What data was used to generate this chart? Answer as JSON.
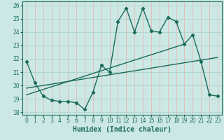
{
  "xlabel": "Humidex (Indice chaleur)",
  "xlim": [
    -0.5,
    23.5
  ],
  "ylim": [
    17.8,
    26.3
  ],
  "yticks": [
    18,
    19,
    20,
    21,
    22,
    23,
    24,
    25,
    26
  ],
  "xticks": [
    0,
    1,
    2,
    3,
    4,
    5,
    6,
    7,
    8,
    9,
    10,
    11,
    12,
    13,
    14,
    15,
    16,
    17,
    18,
    19,
    20,
    21,
    22,
    23
  ],
  "bg_color": "#cce8e4",
  "line_color": "#1a6b5a",
  "vgrid_color": "#e8b8b8",
  "hgrid_color": "#aad4cc",
  "line1_x": [
    0,
    1,
    2,
    3,
    4,
    5,
    6,
    7,
    8,
    9,
    10,
    11,
    12,
    13,
    14,
    15,
    16,
    17,
    18,
    19,
    20,
    21,
    22,
    23
  ],
  "line1_y": [
    21.8,
    20.2,
    19.2,
    18.9,
    18.8,
    18.8,
    18.7,
    18.2,
    19.5,
    21.5,
    21.0,
    24.8,
    25.8,
    24.0,
    25.8,
    24.1,
    24.0,
    25.1,
    24.8,
    23.1,
    23.8,
    21.8,
    19.3,
    19.2
  ],
  "line2_x": [
    0,
    19
  ],
  "line2_y": [
    19.3,
    23.1
  ],
  "line3_x": [
    0,
    23
  ],
  "line3_y": [
    19.8,
    22.1
  ],
  "tick_color": "#1a6b5a",
  "tick_fontsize": 5.5,
  "xlabel_fontsize": 7.0
}
